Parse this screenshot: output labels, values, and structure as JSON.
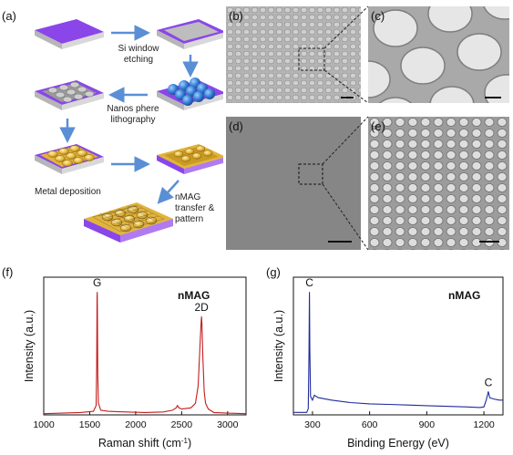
{
  "panels": {
    "a": "(a)",
    "b": "(b)",
    "c": "(c)",
    "d": "(d)",
    "e": "(e)",
    "f": "(f)",
    "g": "(g)"
  },
  "process_steps": {
    "s1_line1": "Si window",
    "s1_line2": "etching",
    "s2_line1": "Nanos phere",
    "s2_line2": "lithography",
    "s3": "Metal deposition",
    "s4_line1": "nMAG",
    "s4_line2": "transfer &",
    "s4_line3": "pattern"
  },
  "colors": {
    "substrate_top": "#8a46e8",
    "substrate_side": "#b6b6b6",
    "sphere": "#3a7fd8",
    "metal": "#e2b43a",
    "raman_line": "#c41d1d",
    "xps_line": "#1f2a9c",
    "arrow": "#5a8fd6"
  },
  "chart_data": [
    {
      "type": "line",
      "panel": "(f)",
      "xlabel": "Raman shift (cm",
      "xlabel_sup": "-1",
      "xlabel_tail": ")",
      "ylabel": "Intensity (a.u.)",
      "annotation": "nMAG",
      "peak_labels": [
        {
          "text": "G",
          "x": 1582
        },
        {
          "text": "2D",
          "x": 2716
        }
      ],
      "xlim": [
        1000,
        3200
      ],
      "xticks": [
        1000,
        1500,
        2000,
        2500,
        3000
      ],
      "series": [
        {
          "x": [
            1000,
            1200,
            1400,
            1540,
            1570,
            1576,
            1580,
            1582,
            1584,
            1588,
            1595,
            1620,
            1700,
            1900,
            2100,
            2300,
            2400,
            2440,
            2455,
            2470,
            2500,
            2600,
            2650,
            2680,
            2700,
            2712,
            2716,
            2720,
            2730,
            2745,
            2760,
            2790,
            2850,
            3000,
            3200
          ],
          "y": [
            0.01,
            0.015,
            0.02,
            0.03,
            0.08,
            0.4,
            1.0,
            1.05,
            0.9,
            0.35,
            0.1,
            0.04,
            0.03,
            0.025,
            0.02,
            0.025,
            0.04,
            0.06,
            0.08,
            0.06,
            0.05,
            0.06,
            0.1,
            0.25,
            0.6,
            0.8,
            0.84,
            0.78,
            0.5,
            0.2,
            0.1,
            0.05,
            0.02,
            0.015,
            0.01
          ]
        }
      ]
    },
    {
      "type": "line",
      "panel": "(g)",
      "xlabel": "Binding Energy (eV)",
      "ylabel": "Intensity (a.u.)",
      "annotation": "nMAG",
      "peak_labels": [
        {
          "text": "C",
          "x": 284
        },
        {
          "text": "C",
          "x": 1223
        }
      ],
      "xlim": [
        200,
        1300
      ],
      "xticks": [
        300,
        600,
        900,
        1200
      ],
      "series": [
        {
          "x": [
            200,
            270,
            278,
            282,
            284,
            286,
            290,
            300,
            310,
            330,
            400,
            500,
            600,
            700,
            800,
            900,
            1000,
            1100,
            1180,
            1200,
            1212,
            1220,
            1223,
            1230,
            1250,
            1280,
            1300
          ],
          "y": [
            0.02,
            0.02,
            0.05,
            0.5,
            1.0,
            0.55,
            0.15,
            0.12,
            0.16,
            0.14,
            0.12,
            0.1,
            0.09,
            0.085,
            0.08,
            0.075,
            0.07,
            0.065,
            0.06,
            0.065,
            0.12,
            0.17,
            0.19,
            0.14,
            0.13,
            0.12,
            0.12
          ]
        }
      ]
    }
  ]
}
